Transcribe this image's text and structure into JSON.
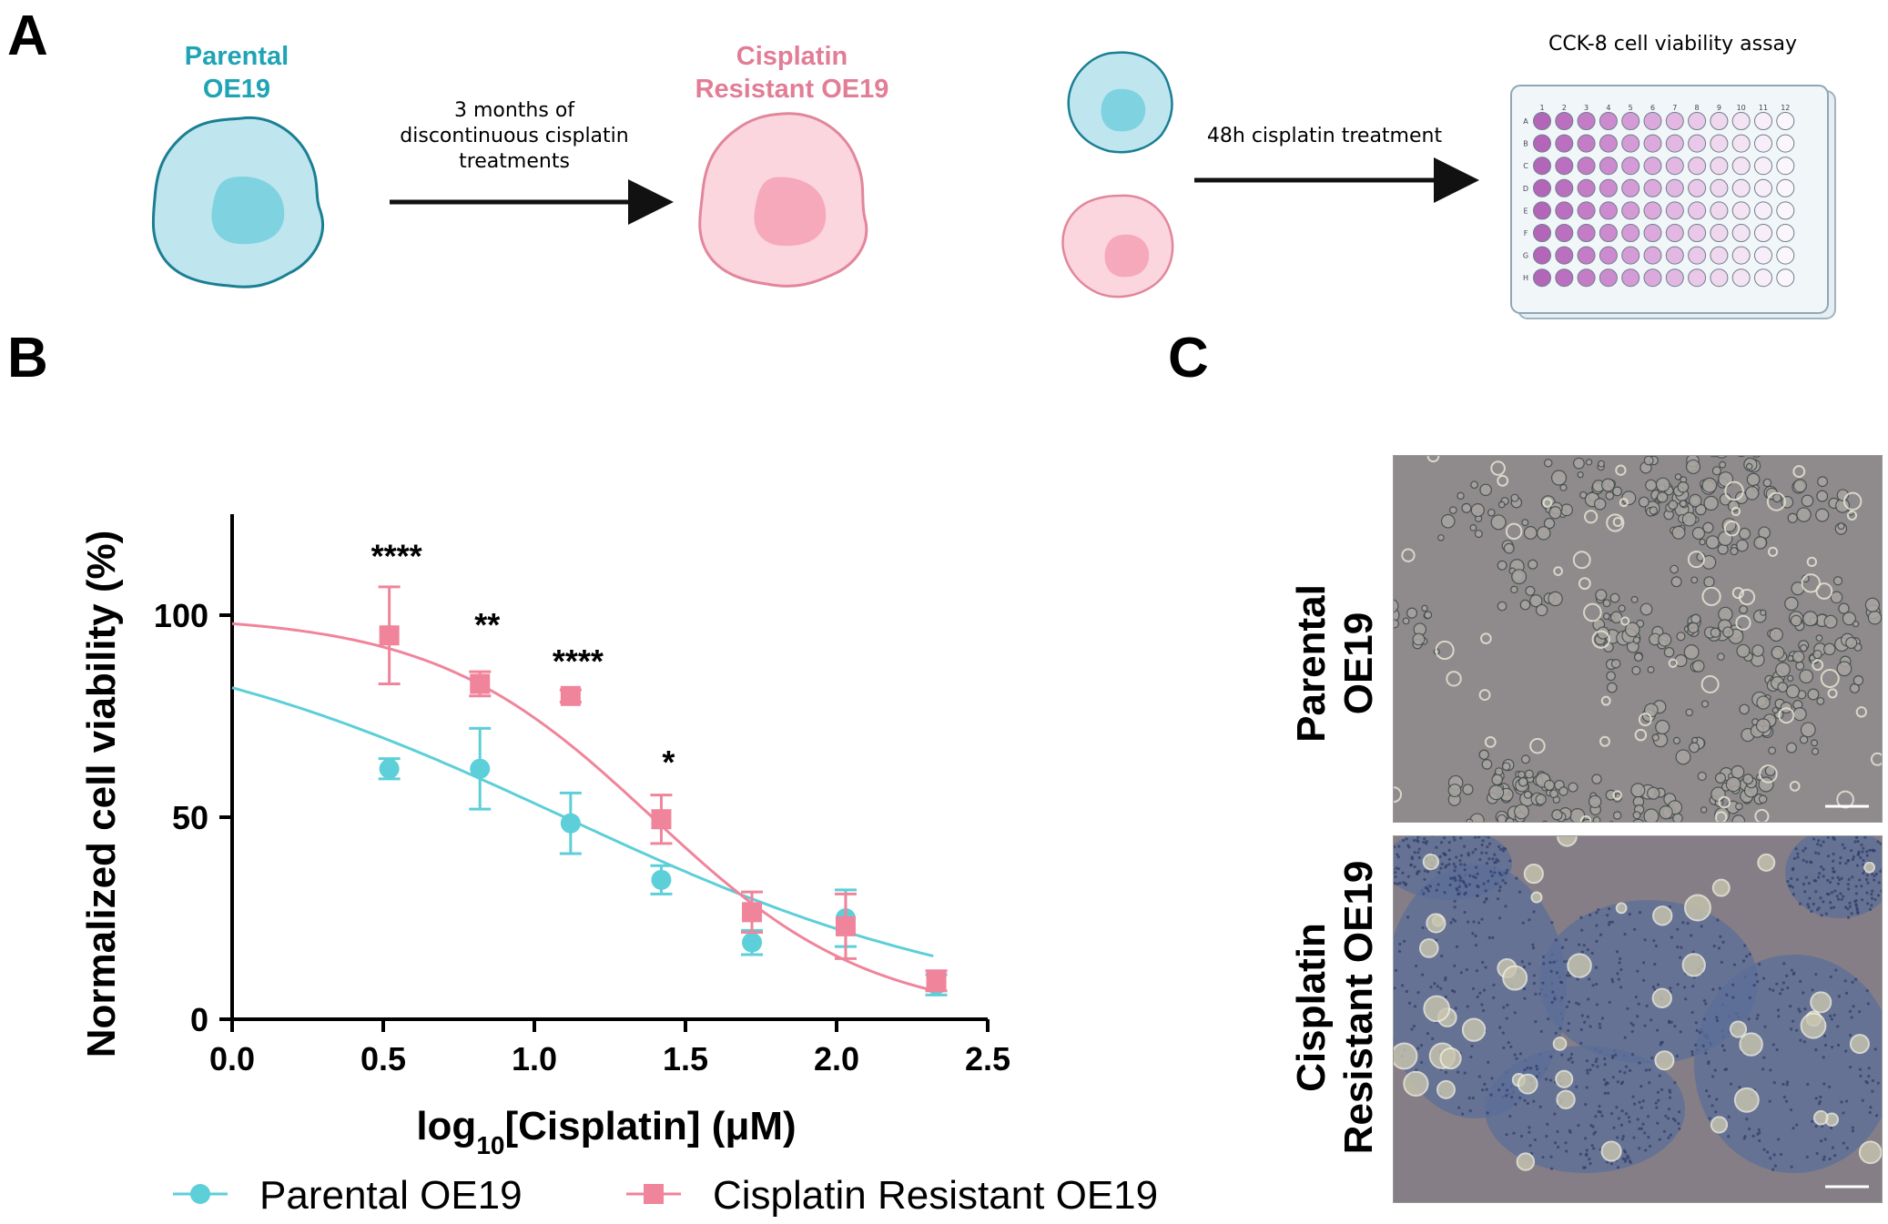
{
  "panels": {
    "a": "A",
    "b": "B",
    "c": "C"
  },
  "panel_a": {
    "parental_label": [
      "Parental",
      "OE19"
    ],
    "resistant_label": [
      "Cisplatin",
      "Resistant OE19"
    ],
    "arrow1_text": [
      "3 months of",
      "discontinuous cisplatin",
      "treatments"
    ],
    "arrow2_text": "48h cisplatin treatment",
    "assay_title": "CCK-8 cell viability assay",
    "plate_cols": [
      "1",
      "2",
      "3",
      "4",
      "5",
      "6",
      "7",
      "8",
      "9",
      "10",
      "11",
      "12"
    ],
    "plate_rows": [
      "A",
      "B",
      "C",
      "D",
      "E",
      "F",
      "G",
      "H"
    ],
    "colors": {
      "parental": "#1fa3b5",
      "resistant": "#e27d96"
    }
  },
  "chart_data": {
    "type": "scatter",
    "title": "",
    "xlabel": "log10[Cisplatin] (μM)",
    "xlabel_parts": {
      "pre": "log",
      "sub": "10",
      "post": "[Cisplatin] (μM)"
    },
    "ylabel": "Normalized cell viability (%)",
    "xlim": [
      0,
      2.5
    ],
    "ylim": [
      0,
      125
    ],
    "xticks": [
      "0.0",
      "0.5",
      "1.0",
      "1.5",
      "2.0",
      "2.5"
    ],
    "xtick_values": [
      0,
      0.5,
      1.0,
      1.5,
      2.0,
      2.5
    ],
    "yticks": [
      "0",
      "50",
      "100"
    ],
    "ytick_values": [
      0,
      50,
      100
    ],
    "legend_position": "bottom",
    "series": [
      {
        "name": "Parental OE19",
        "color": "#5ccfd9",
        "marker": "circle",
        "x": [
          0.52,
          0.82,
          1.12,
          1.42,
          1.72,
          2.03,
          2.33
        ],
        "y": [
          62,
          62,
          48.5,
          34.5,
          19,
          25,
          8.5
        ],
        "err": [
          2.5,
          10,
          7.5,
          3.5,
          3,
          7,
          2.5
        ],
        "fit": {
          "bottom": 0,
          "top": 100,
          "log_ic50": 1.1,
          "hill": 0.6
        }
      },
      {
        "name": "Cisplatin Resistant OE19",
        "color": "#f0849a",
        "marker": "square",
        "x": [
          0.52,
          0.82,
          1.12,
          1.42,
          1.72,
          2.03,
          2.33
        ],
        "y": [
          95,
          83,
          80,
          49.5,
          26.5,
          23,
          9.5
        ],
        "err": [
          12,
          3,
          1.5,
          6,
          5,
          8,
          2.5
        ],
        "fit": {
          "bottom": 0,
          "top": 100,
          "log_ic50": 1.39,
          "hill": 1.2
        }
      }
    ],
    "annotations": [
      {
        "x": 0.52,
        "y": 115,
        "text": "****"
      },
      {
        "x": 0.82,
        "y": 98,
        "text": "**"
      },
      {
        "x": 1.12,
        "y": 89,
        "text": "****"
      },
      {
        "x": 1.42,
        "y": 64,
        "text": "*"
      }
    ]
  },
  "panel_c": {
    "top_label": [
      "Parental",
      "OE19"
    ],
    "bottom_label": [
      "Cisplatin",
      "Resistant OE19"
    ]
  }
}
